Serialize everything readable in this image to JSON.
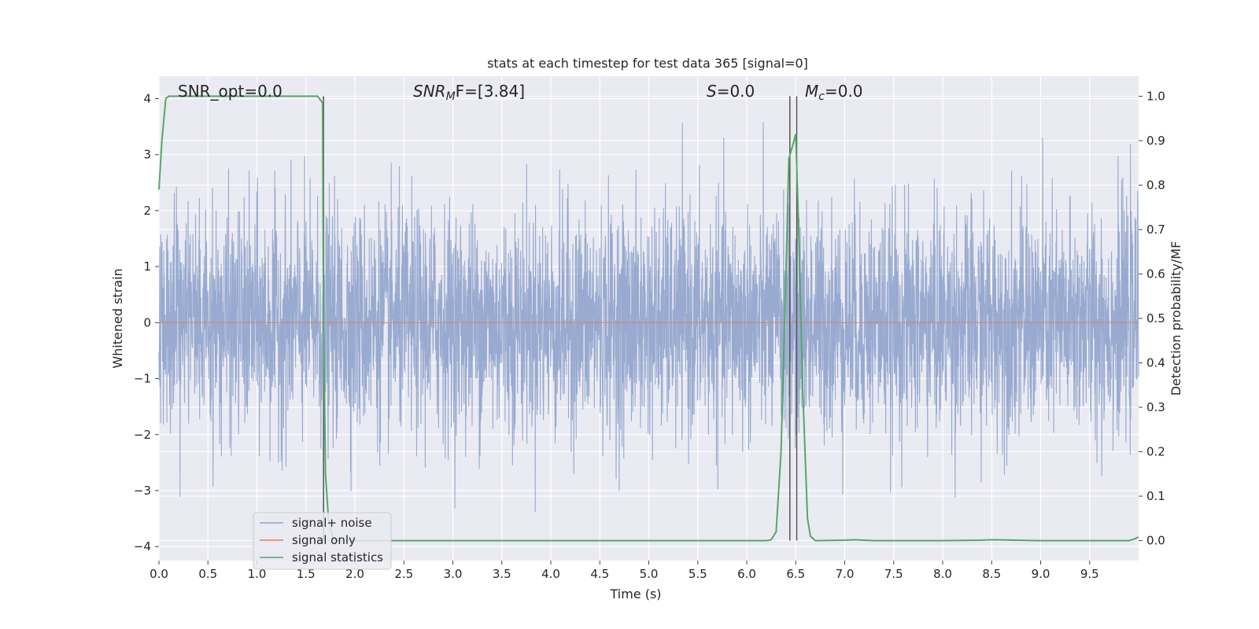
{
  "chart_data": {
    "type": "line",
    "title": "stats at each timestep for test data 365 [signal=0]",
    "xlabel": "Time (s)",
    "ylabel_left": "Whitened strain",
    "ylabel_right": "Detection probability/MF",
    "xlim": [
      0.0,
      10.0
    ],
    "ylim_left": [
      -4.25,
      4.4
    ],
    "ylim_right": [
      -0.045,
      1.045
    ],
    "x_ticks": [
      "0.0",
      "0.5",
      "1.0",
      "1.5",
      "2.0",
      "2.5",
      "3.0",
      "3.5",
      "4.0",
      "4.5",
      "5.0",
      "5.5",
      "6.0",
      "6.5",
      "7.0",
      "7.5",
      "8.0",
      "8.5",
      "9.0",
      "9.5"
    ],
    "y_left_ticks": [
      "−4",
      "−3",
      "−2",
      "−1",
      "0",
      "1",
      "2",
      "3",
      "4"
    ],
    "y_right_ticks": [
      "0.0",
      "0.1",
      "0.2",
      "0.3",
      "0.4",
      "0.5",
      "0.6",
      "0.7",
      "0.8",
      "0.9",
      "1.0"
    ],
    "grid": true,
    "background": "#eaeaf2",
    "annotations": {
      "snr_opt": "SNR_opt=0.0",
      "snr_mf_label": "SNR",
      "snr_mf_sub": "M",
      "snr_mf_tail": "F=[3.84]",
      "s_label": "S",
      "s_tail": "=0.0",
      "mc_label": "M",
      "mc_sub": "c",
      "mc_tail": "=0.0"
    },
    "vertical_lines_x": [
      1.68,
      6.44,
      6.51
    ],
    "legend": {
      "placement": "lower-left",
      "entries": [
        "signal+ noise",
        "signal only",
        "signal statistics"
      ]
    },
    "series": [
      {
        "name": "signal+ noise",
        "color": "#8fa3cc",
        "axis": "left",
        "description_type": "noise",
        "sigma": 1.0,
        "range": [
          -3.8,
          4.0
        ]
      },
      {
        "name": "signal only",
        "color": "#dd8452",
        "axis": "left",
        "x": [
          0.0,
          10.0
        ],
        "y": [
          0.0,
          0.0
        ]
      },
      {
        "name": "signal statistics",
        "color": "#55a868",
        "axis": "right",
        "x": [
          0.0,
          0.03,
          0.07,
          0.1,
          0.5,
          1.0,
          1.5,
          1.62,
          1.67,
          1.68,
          1.7,
          1.73,
          1.77,
          1.8,
          2.5,
          3.0,
          4.0,
          4.5,
          5.0,
          6.0,
          6.2,
          6.25,
          6.3,
          6.35,
          6.4,
          6.43,
          6.47,
          6.5,
          6.53,
          6.57,
          6.62,
          6.65,
          6.7,
          7.0,
          7.1,
          7.3,
          8.0,
          8.4,
          8.5,
          9.0,
          9.5,
          9.9,
          9.95,
          10.0
        ],
        "y": [
          0.79,
          0.9,
          0.995,
          1.0,
          1.0,
          1.0,
          1.0,
          1.0,
          0.985,
          0.5,
          0.15,
          0.05,
          0.01,
          0.0,
          0.0,
          0.0,
          0.0,
          0.0,
          0.0,
          0.0,
          0.0,
          0.002,
          0.02,
          0.2,
          0.6,
          0.86,
          0.89,
          0.915,
          0.7,
          0.35,
          0.05,
          0.01,
          0.0,
          0.001,
          0.002,
          0.0,
          0.0,
          0.001,
          0.002,
          0.0,
          0.0,
          0.0,
          0.003,
          0.008
        ]
      }
    ]
  }
}
